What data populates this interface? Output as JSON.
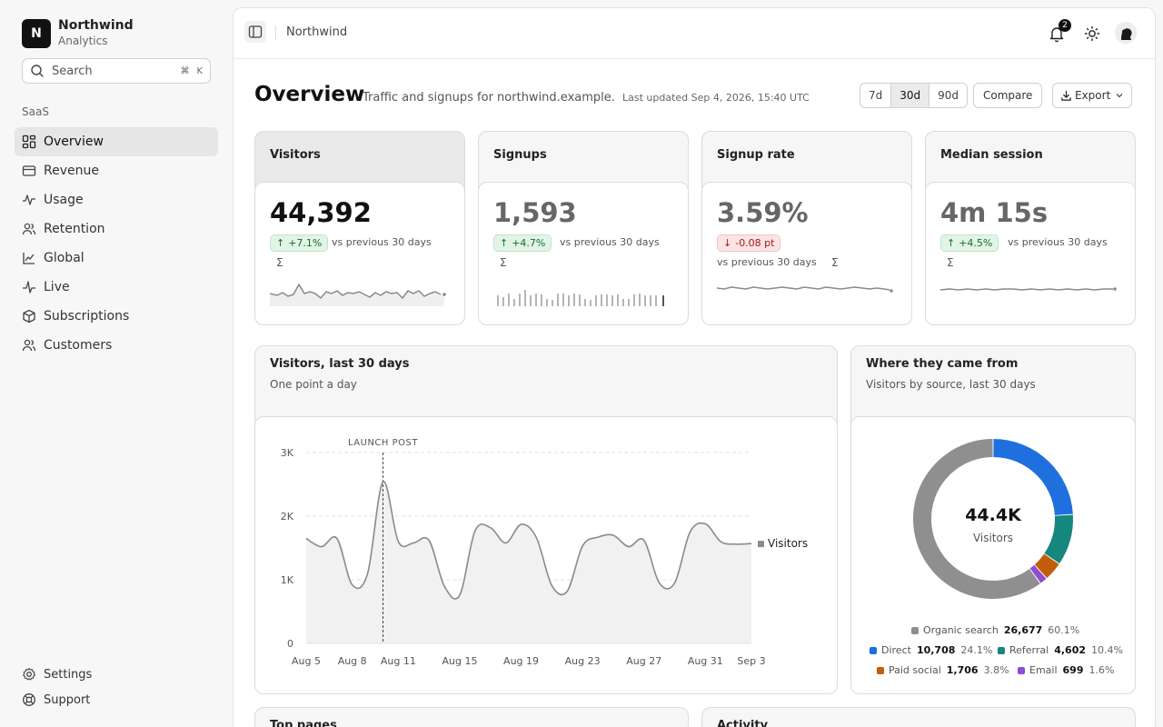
{
  "brand": {
    "initial": "N",
    "name": "Northwind",
    "subtitle": "Analytics"
  },
  "search": {
    "placeholder": "Search",
    "shortcut_mod": "⌘",
    "shortcut_key": "K"
  },
  "sidebar": {
    "section_label": "SaaS",
    "items": [
      {
        "label": "Overview",
        "icon": "grid-icon",
        "active": true
      },
      {
        "label": "Revenue",
        "icon": "credit-card-icon"
      },
      {
        "label": "Usage",
        "icon": "activity-icon"
      },
      {
        "label": "Retention",
        "icon": "users-icon"
      },
      {
        "label": "Global",
        "icon": "line-chart-icon"
      },
      {
        "label": "Live",
        "icon": "pulse-icon"
      },
      {
        "label": "Subscriptions",
        "icon": "box-icon"
      },
      {
        "label": "Customers",
        "icon": "users-icon"
      }
    ],
    "footer": [
      {
        "label": "Settings",
        "icon": "gear-icon"
      },
      {
        "label": "Support",
        "icon": "lifebuoy-icon"
      }
    ]
  },
  "topbar": {
    "breadcrumb": "Northwind",
    "notifications": "2"
  },
  "header": {
    "title": "Overview",
    "subtitle": "Traffic and signups for northwind.example.",
    "updated": "Last updated Sep 4, 2026, 15:40 UTC",
    "ranges": [
      "7d",
      "30d",
      "90d"
    ],
    "active_range": "30d",
    "compare_label": "Compare",
    "export_label": "Export"
  },
  "kpis": [
    {
      "label": "Visitors",
      "value": "44,392",
      "delta": "+7.1%",
      "direction": "up",
      "vs": "vs previous 30 days",
      "sigma": "Σ",
      "spark": "area"
    },
    {
      "label": "Signups",
      "value": "1,593",
      "delta": "+4.7%",
      "direction": "up",
      "vs": "vs previous 30 days",
      "sigma": "Σ",
      "spark": "bars"
    },
    {
      "label": "Signup rate",
      "value": "3.59%",
      "delta": "-0.08 pt",
      "direction": "down",
      "vs": "vs previous 30 days",
      "sigma": "Σ",
      "spark": "line"
    },
    {
      "label": "Median session",
      "value": "4m 15s",
      "delta": "+4.5%",
      "direction": "up",
      "vs": "vs previous 30 days",
      "sigma": "Σ",
      "spark": "line"
    }
  ],
  "visitors_card": {
    "title": "Visitors, last 30 days",
    "subtitle": "One point a day"
  },
  "sources_card": {
    "title": "Where they came from",
    "subtitle": "Visitors by source, last 30 days",
    "total": "44.4K",
    "total_label": "Visitors"
  },
  "bottom_cards": {
    "left_title": "Top pages",
    "right_title": "Activity"
  },
  "colors": {
    "organic": "#8f8f8f",
    "direct": "#1f6fde",
    "referral": "#15877c",
    "paid": "#c45d0a",
    "email": "#8c4fd1",
    "line": "#8a8a8a"
  },
  "chart_data": [
    {
      "type": "line",
      "x": [
        "Aug 5",
        "Aug 6",
        "Aug 7",
        "Aug 8",
        "Aug 9",
        "Aug 10",
        "Aug 11",
        "Aug 12",
        "Aug 13",
        "Aug 14",
        "Aug 15",
        "Aug 16",
        "Aug 17",
        "Aug 18",
        "Aug 19",
        "Aug 20",
        "Aug 21",
        "Aug 22",
        "Aug 23",
        "Aug 24",
        "Aug 25",
        "Aug 26",
        "Aug 27",
        "Aug 28",
        "Aug 29",
        "Aug 30",
        "Aug 31",
        "Sep 1",
        "Sep 2",
        "Sep 3"
      ],
      "series": [
        {
          "name": "Visitors",
          "values": [
            1650,
            1520,
            1650,
            920,
            1100,
            2540,
            1600,
            1580,
            1620,
            900,
            760,
            1770,
            1820,
            1580,
            1870,
            1660,
            910,
            820,
            1530,
            1670,
            1700,
            1520,
            1620,
            950,
            950,
            1750,
            1880,
            1600,
            1560,
            1570
          ]
        }
      ],
      "xticks": [
        "Aug 5",
        "Aug 8",
        "Aug 11",
        "Aug 15",
        "Aug 19",
        "Aug 23",
        "Aug 27",
        "Aug 31",
        "Sep 3"
      ],
      "yticks": [
        "0",
        "1K",
        "2K",
        "3K"
      ],
      "ylim": [
        0,
        3000
      ],
      "annotation": {
        "x": "Aug 10",
        "label": "LAUNCH POST"
      },
      "grid": true,
      "legend": "right"
    },
    {
      "type": "pie",
      "donut": true,
      "center_label": "44.4K",
      "center_sublabel": "Visitors",
      "slices": [
        {
          "name": "Organic search",
          "value": 26677,
          "value_label": "26,677",
          "percent": "60.1%",
          "color_key": "organic"
        },
        {
          "name": "Direct",
          "value": 10708,
          "value_label": "10,708",
          "percent": "24.1%",
          "color_key": "direct"
        },
        {
          "name": "Referral",
          "value": 4602,
          "value_label": "4,602",
          "percent": "10.4%",
          "color_key": "referral"
        },
        {
          "name": "Paid social",
          "value": 1706,
          "value_label": "1,706",
          "percent": "3.8%",
          "color_key": "paid"
        },
        {
          "name": "Email",
          "value": 699,
          "value_label": "699",
          "percent": "1.6%",
          "color_key": "email"
        }
      ]
    }
  ]
}
